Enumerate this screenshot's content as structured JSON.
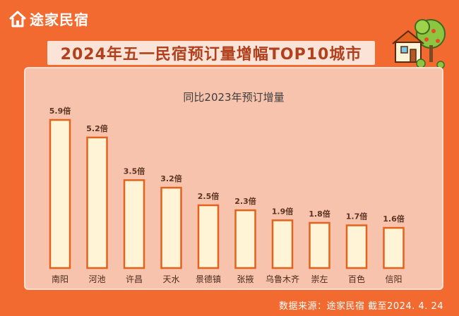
{
  "brand": {
    "name": "途家民宿",
    "logo_icon": "house-logo-icon"
  },
  "title": "2024年五一民宿预订量增幅TOP10城市",
  "source_label": "数据来源：途家民宿  截至2024. 4. 24",
  "colors": {
    "background": "#f26a2f",
    "panel": "#f8c3ad",
    "bar_fill": "#fff4d6",
    "bar_stroke": "#e2621e",
    "title_text": "#b2401c"
  },
  "chart_data": {
    "type": "bar",
    "title": "同比2023年预订增量",
    "categories": [
      "南阳",
      "河池",
      "许昌",
      "天水",
      "景德镇",
      "张掖",
      "乌鲁木齐",
      "崇左",
      "百色",
      "信阳"
    ],
    "values": [
      5.9,
      5.2,
      3.5,
      3.2,
      2.5,
      2.3,
      1.9,
      1.8,
      1.7,
      1.6
    ],
    "value_labels": [
      "5.9倍",
      "5.2倍",
      "3.5倍",
      "3.2倍",
      "2.5倍",
      "2.3倍",
      "1.9倍",
      "1.8倍",
      "1.7倍",
      "1.6倍"
    ],
    "xlabel": "",
    "ylabel": "",
    "ylim": [
      0,
      6.5
    ],
    "grid": false,
    "legend": "none"
  }
}
